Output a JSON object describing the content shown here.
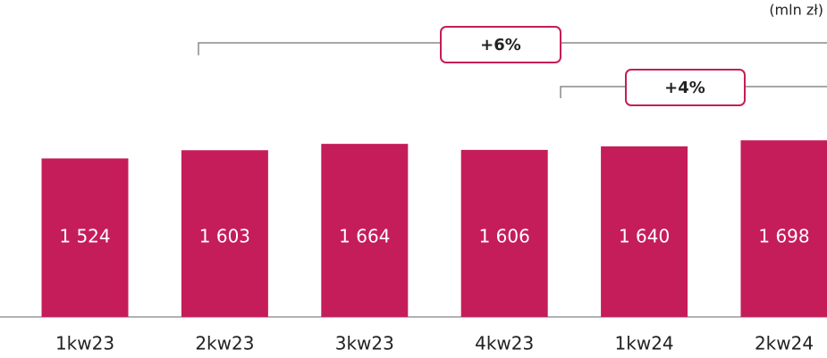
{
  "chart_data": {
    "type": "bar",
    "unit": "(mln zł)",
    "categories": [
      "1kw23",
      "2kw23",
      "3kw23",
      "4kw23",
      "1kw24",
      "2kw24"
    ],
    "values": [
      1524,
      1603,
      1664,
      1606,
      1640,
      1698
    ],
    "value_labels": [
      "1 524",
      "1 603",
      "1 664",
      "1 606",
      "1 640",
      "1 698"
    ],
    "color": "#c51d5a",
    "annotations": [
      "+6%",
      "+4%"
    ]
  }
}
